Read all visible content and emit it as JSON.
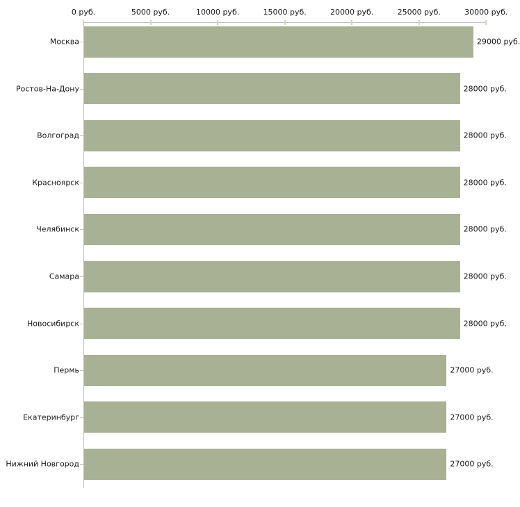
{
  "chart_data": {
    "type": "bar",
    "orientation": "horizontal",
    "title": "",
    "xlabel": "",
    "ylabel": "",
    "grid": false,
    "legend": false,
    "categories": [
      "Москва",
      "Ростов-На-Дону",
      "Волгоград",
      "Красноярск",
      "Челябинск",
      "Самара",
      "Новосибирск",
      "Пермь",
      "Екатеринбург",
      "Нижний Новгород"
    ],
    "values": [
      29000,
      28000,
      28000,
      28000,
      28000,
      28000,
      28000,
      27000,
      27000,
      27000
    ],
    "value_labels": [
      "29000 руб.",
      "28000 руб.",
      "28000 руб.",
      "28000 руб.",
      "28000 руб.",
      "28000 руб.",
      "28000 руб.",
      "27000 руб.",
      "27000 руб.",
      "27000 руб."
    ],
    "x_axis": {
      "position": "top",
      "min": 0,
      "max": 30000,
      "ticks": [
        0,
        5000,
        10000,
        15000,
        20000,
        25000,
        30000
      ],
      "tick_labels": [
        "0 руб.",
        "5000 руб.",
        "10000 руб.",
        "15000 руб.",
        "20000 руб.",
        "25000 руб.",
        "30000 руб."
      ]
    },
    "colors": {
      "bar": "#a9b194",
      "axis_line": "#bdbdbd",
      "axis_tick": "#d5d9ae",
      "category_tick": "#c2c6ad",
      "text": "#1a1a1a",
      "background": "#ffffff"
    }
  }
}
